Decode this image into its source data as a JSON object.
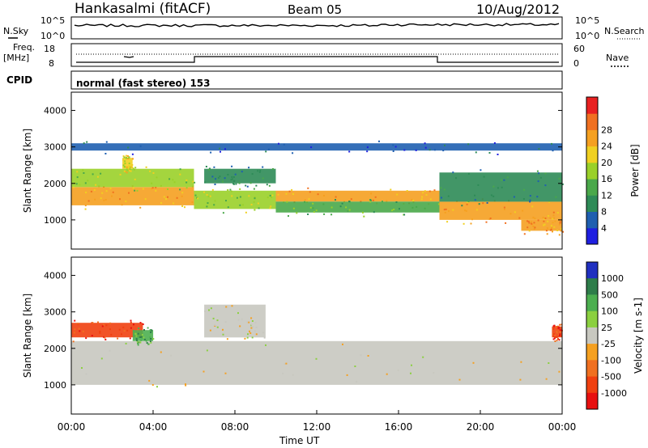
{
  "header": {
    "station": "Hankasalmi (fitACF)",
    "beam": "Beam 05",
    "date": "10/Aug/2012"
  },
  "noise_panel": {
    "left_label": "N.Sky",
    "left_ticks": [
      "10^5",
      "10^0"
    ],
    "right_ticks": [
      "10^5",
      "10^0"
    ],
    "right_label": "N.Search"
  },
  "freq_panel": {
    "left_label_top": "Freq.",
    "left_label_unit": "[MHz]",
    "left_ticks": [
      "18",
      "8"
    ],
    "right_ticks": [
      "60",
      "0"
    ],
    "right_label": "Nave"
  },
  "cpid_panel": {
    "label": "CPID",
    "text": "normal (fast stereo) 153"
  },
  "chart_data": [
    {
      "type": "heatmap",
      "title": "",
      "ylabel": "Slant Range [km]",
      "ylim": [
        200,
        4500
      ],
      "y_ticks": [
        "1000",
        "2000",
        "3000",
        "4000"
      ],
      "colorbar": {
        "label": "Power [dB]",
        "ticks": [
          "4",
          "8",
          "12",
          "16",
          "20",
          "24",
          "28"
        ],
        "colors": [
          "#1f1fe0",
          "#1f5fb0",
          "#2e8b57",
          "#4aa84a",
          "#9ad029",
          "#f0d020",
          "#f5a020",
          "#f07020",
          "#e82020"
        ]
      },
      "bands": [
        {
          "start_hr": 0.0,
          "end_hr": 6.0,
          "range_low": 1400,
          "range_high": 1900,
          "power_db": 26
        },
        {
          "start_hr": 0.0,
          "end_hr": 6.0,
          "range_low": 1900,
          "range_high": 2400,
          "power_db": 16
        },
        {
          "start_hr": 2.5,
          "end_hr": 3.0,
          "range_low": 2400,
          "range_high": 2700,
          "power_db": 22
        },
        {
          "start_hr": 6.0,
          "end_hr": 10.0,
          "range_low": 1300,
          "range_high": 1800,
          "power_db": 18
        },
        {
          "start_hr": 6.5,
          "end_hr": 10.0,
          "range_low": 2000,
          "range_high": 2400,
          "power_db": 10
        },
        {
          "start_hr": 10.0,
          "end_hr": 18.0,
          "range_low": 1500,
          "range_high": 1800,
          "power_db": 24
        },
        {
          "start_hr": 10.0,
          "end_hr": 18.0,
          "range_low": 1200,
          "range_high": 1500,
          "power_db": 14
        },
        {
          "start_hr": 18.0,
          "end_hr": 24.0,
          "range_low": 1000,
          "range_high": 1500,
          "power_db": 26
        },
        {
          "start_hr": 18.0,
          "end_hr": 24.0,
          "range_low": 1500,
          "range_high": 2300,
          "power_db": 10
        },
        {
          "start_hr": 22.0,
          "end_hr": 24.0,
          "range_low": 700,
          "range_high": 1000,
          "power_db": 24
        },
        {
          "start_hr": 0.0,
          "end_hr": 24.0,
          "range_low": 2900,
          "range_high": 3100,
          "power_db": 6
        }
      ]
    },
    {
      "type": "heatmap",
      "title": "",
      "ylabel": "Slant Range [km]",
      "ylim": [
        200,
        4500
      ],
      "y_ticks": [
        "1000",
        "2000",
        "3000",
        "4000"
      ],
      "xlabel": "Time UT",
      "x_ticks": [
        "00:00",
        "04:00",
        "08:00",
        "12:00",
        "16:00",
        "20:00",
        "00:00"
      ],
      "colorbar": {
        "label": "Velocity [m s-1]",
        "ticks": [
          "1000",
          "500",
          "100",
          "25",
          "-25",
          "-100",
          "-500",
          "-1000"
        ],
        "colors": [
          "#2030c0",
          "#2e7d4a",
          "#4caf50",
          "#8bd040",
          "#c8c8c0",
          "#f5a020",
          "#f07020",
          "#f04010",
          "#e81010"
        ]
      },
      "bands": [
        {
          "start_hr": 0.0,
          "end_hr": 24.0,
          "range_low": 1000,
          "range_high": 2200,
          "velocity": 0
        },
        {
          "start_hr": 0.0,
          "end_hr": 3.5,
          "range_low": 2300,
          "range_high": 2700,
          "velocity": -300
        },
        {
          "start_hr": 3.0,
          "end_hr": 4.0,
          "range_low": 2200,
          "range_high": 2500,
          "velocity": 80
        },
        {
          "start_hr": 6.5,
          "end_hr": 9.5,
          "range_low": 2300,
          "range_high": 3200,
          "velocity": 0
        },
        {
          "start_hr": 23.5,
          "end_hr": 24.0,
          "range_low": 2300,
          "range_high": 2600,
          "velocity": -300
        }
      ]
    }
  ]
}
